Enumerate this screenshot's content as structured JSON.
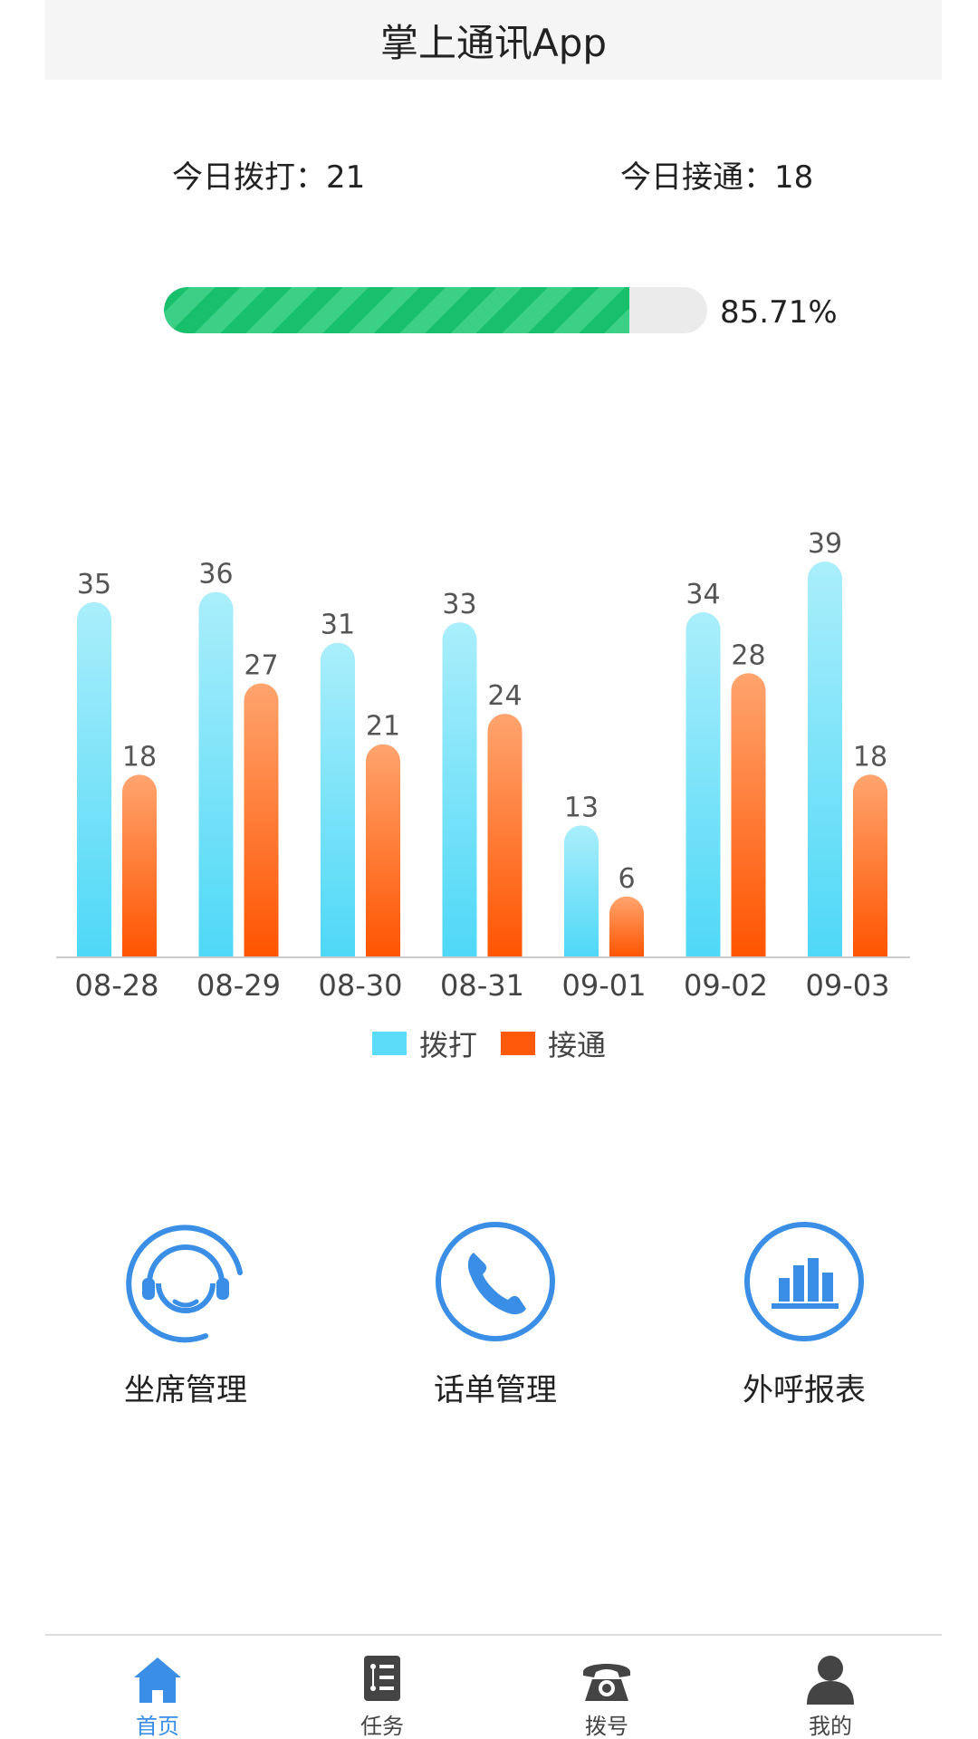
{
  "header": {
    "title": "掌上通讯App"
  },
  "stats": {
    "dial_text": "今日拨打：21",
    "connect_text": "今日接通：18"
  },
  "progress": {
    "value_percent": 85.71,
    "label": "85.71%",
    "fill_color": "#19c06b",
    "stripe_color": "#3ccf86",
    "track_color": "#ebebeb"
  },
  "chart_data": {
    "type": "bar",
    "categories": [
      "08-28",
      "08-29",
      "08-30",
      "08-31",
      "09-01",
      "09-02",
      "09-03"
    ],
    "series": [
      {
        "name": "拨打",
        "values": [
          35,
          36,
          31,
          33,
          13,
          34,
          39
        ],
        "color": "#5cdcf8"
      },
      {
        "name": "接通",
        "values": [
          18,
          27,
          21,
          24,
          6,
          28,
          18
        ],
        "color": "#ff5a0a"
      }
    ],
    "ylim": [
      0,
      39
    ],
    "grid": false,
    "legend_position": "bottom-center"
  },
  "menu": {
    "items": [
      {
        "label": "坐席管理",
        "icon": "headset-agent-icon"
      },
      {
        "label": "话单管理",
        "icon": "phone-icon"
      },
      {
        "label": "外呼报表",
        "icon": "bar-chart-icon"
      }
    ],
    "icon_color": "#3a8ee6"
  },
  "tabbar": {
    "tabs": [
      {
        "label": "首页",
        "icon": "home-icon",
        "active": true
      },
      {
        "label": "任务",
        "icon": "task-list-icon",
        "active": false
      },
      {
        "label": "拨号",
        "icon": "telephone-icon",
        "active": false
      },
      {
        "label": "我的",
        "icon": "user-icon",
        "active": false
      }
    ],
    "active_color": "#3a8ee6",
    "inactive_color": "#444444"
  }
}
